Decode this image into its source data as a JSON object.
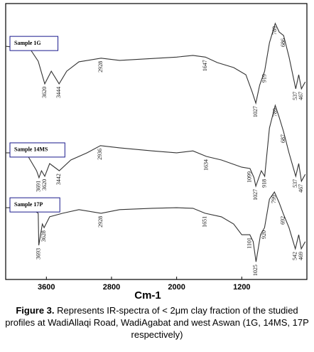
{
  "chart_data": {
    "type": "line",
    "xlabel": "Cm-1",
    "xlim": [
      4100,
      400
    ],
    "xticks": [
      3600,
      2800,
      2000,
      1200
    ],
    "ylim": [
      0,
      100
    ],
    "caption_label": "Figure 3.",
    "caption": "Represents IR-spectra of < 2μm clay fraction of the studied profiles at WadiAllaqi Road, WadiAgabat and west Aswan (1G, 14MS, 17P respectively)",
    "series": [
      {
        "name": "Sample 1G",
        "color": "#333333",
        "x": [
          4100,
          3800,
          3700,
          3620,
          3540,
          3444,
          3350,
          3200,
          2928,
          2700,
          2000,
          1800,
          1647,
          1500,
          1300,
          1150,
          1070,
          1027,
          980,
          919,
          860,
          789,
          740,
          686,
          620,
          537,
          500,
          467,
          420
        ],
        "values": [
          84.5,
          83.5,
          79.1,
          70.9,
          75.5,
          70.9,
          75.5,
          78.9,
          80.2,
          79.4,
          80.6,
          81.2,
          80.6,
          78.6,
          76.8,
          74.2,
          67.8,
          63.9,
          70.4,
          75.5,
          85.8,
          92.8,
          89.7,
          88.4,
          80.7,
          69.1,
          74.2,
          69.1,
          71.6
        ],
        "peaks": [
          3620,
          3444,
          2928,
          1647,
          1027,
          919,
          789,
          686,
          537,
          467
        ]
      },
      {
        "name": "Sample 14MS",
        "color": "#333333",
        "x": [
          4100,
          3850,
          3720,
          3691,
          3660,
          3620,
          3560,
          3442,
          3300,
          3100,
          2936,
          2700,
          2300,
          2000,
          1800,
          1634,
          1450,
          1200,
          1099,
          1050,
          1027,
          960,
          918,
          860,
          789,
          740,
          687,
          620,
          537,
          500,
          467,
          420
        ],
        "values": [
          45.9,
          45.9,
          39.4,
          36.9,
          39.4,
          37.4,
          42.0,
          39.4,
          43.3,
          45.9,
          48.5,
          47.7,
          46.6,
          45.9,
          46.6,
          44.6,
          43.3,
          40.7,
          40.2,
          36.9,
          33.8,
          39.4,
          37.4,
          54.9,
          63.1,
          58.8,
          53.6,
          45.9,
          37.4,
          42.0,
          35.6,
          38.1
        ],
        "peaks": [
          3691,
          3620,
          3442,
          2936,
          1634,
          1099,
          1027,
          918,
          789,
          687,
          537,
          467
        ]
      },
      {
        "name": "Sample 17P",
        "color": "#333333",
        "x": [
          4100,
          3800,
          3700,
          3693,
          3650,
          3628,
          3560,
          3400,
          3200,
          2928,
          2700,
          2300,
          2000,
          1800,
          1651,
          1450,
          1300,
          1200,
          1101,
          1060,
          1025,
          970,
          920,
          860,
          799,
          740,
          692,
          620,
          542,
          500,
          469,
          420
        ],
        "values": [
          26.0,
          26.0,
          24.0,
          12.4,
          20.1,
          18.8,
          22.7,
          24.0,
          25.3,
          24.0,
          25.3,
          25.8,
          26.0,
          25.8,
          24.0,
          22.7,
          20.1,
          16.2,
          16.2,
          13.7,
          6.4,
          16.2,
          18.8,
          29.1,
          31.7,
          27.8,
          24.0,
          18.8,
          11.1,
          16.2,
          11.1,
          13.7
        ],
        "peaks": [
          3693,
          3628,
          2928,
          1651,
          1101,
          1025,
          920,
          799,
          692,
          542,
          469
        ]
      }
    ]
  }
}
